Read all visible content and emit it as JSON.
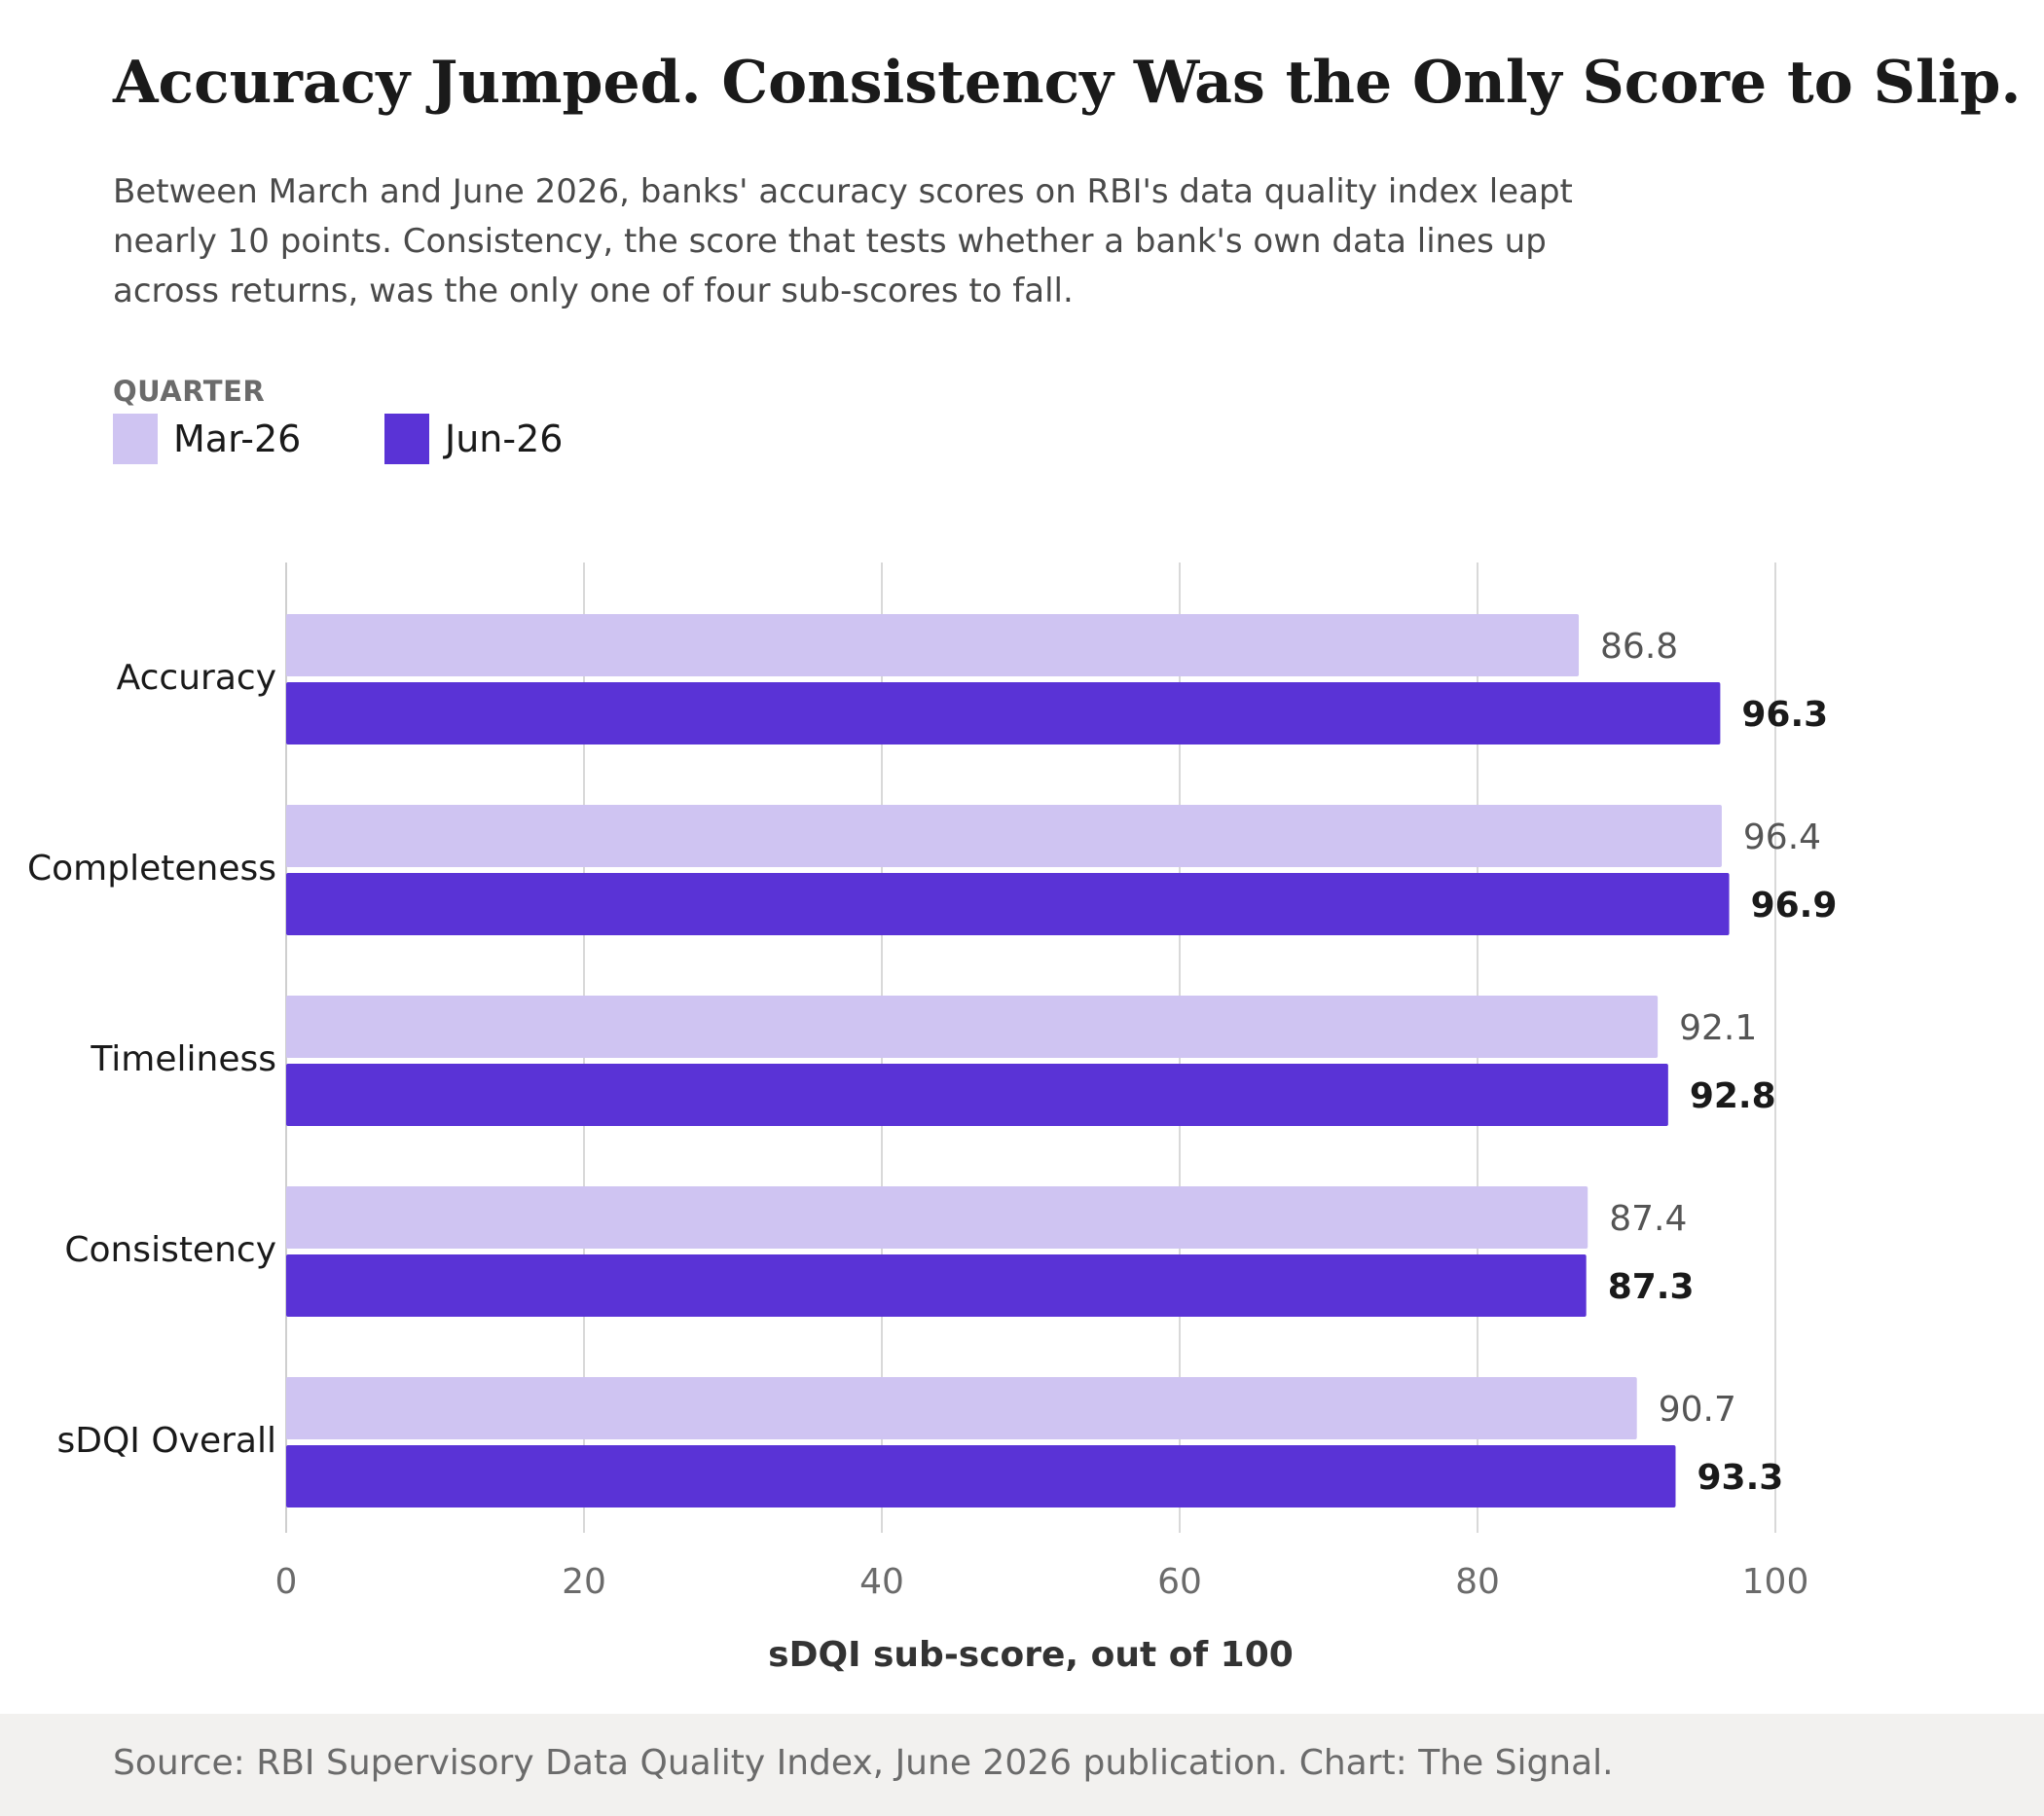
{
  "title": "Accuracy Jumped. Consistency Was the Only Score to Slip.",
  "subtitle": "Between March and June 2026, banks' accuracy scores on RBI's data quality index leapt nearly 10 points. Consistency, the score that tests whether a bank's own data lines up across returns, was the only one of four sub-scores to fall.",
  "legend": {
    "title": "QUARTER",
    "items": [
      {
        "label": "Mar-26",
        "color": "#cfc4f2"
      },
      {
        "label": "Jun-26",
        "color": "#5a33d6"
      }
    ]
  },
  "chart_data": {
    "type": "bar",
    "orientation": "horizontal",
    "categories": [
      "Accuracy",
      "Completeness",
      "Timeliness",
      "Consistency",
      "sDQI Overall"
    ],
    "series": [
      {
        "name": "Mar-26",
        "values": [
          86.8,
          96.4,
          92.1,
          87.4,
          90.7
        ],
        "color": "#cfc4f2"
      },
      {
        "name": "Jun-26",
        "values": [
          96.3,
          96.9,
          92.8,
          87.3,
          93.3
        ],
        "color": "#5a33d6"
      }
    ],
    "xlabel": "sDQI sub-score, out of 100",
    "xlim": [
      0,
      100
    ],
    "xticks": [
      0,
      20,
      40,
      60,
      80,
      100
    ],
    "grid": true,
    "value_labels": true
  },
  "footer": {
    "source": "Source: RBI Supervisory Data Quality Index, June 2026 publication. Chart: The Signal."
  }
}
